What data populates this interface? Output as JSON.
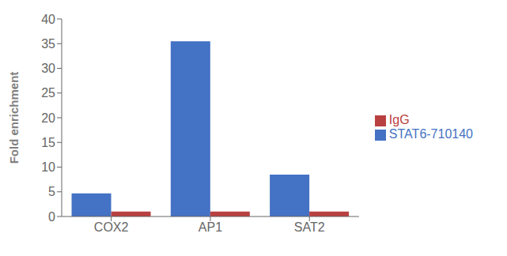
{
  "chart_data": {
    "type": "bar",
    "categories": [
      "COX2",
      "AP1",
      "SAT2"
    ],
    "series": [
      {
        "name": "STAT6-710140",
        "color": "#4472C4",
        "values": [
          4.7,
          35.5,
          8.5
        ]
      },
      {
        "name": "IgG",
        "color": "#B94040",
        "values": [
          1.0,
          1.0,
          1.0
        ]
      }
    ],
    "ylabel": "Fold enrichment",
    "ylim": [
      0,
      40
    ],
    "yticks": [
      0,
      5,
      10,
      15,
      20,
      25,
      30,
      35,
      40
    ],
    "grid": false,
    "legend": "right"
  }
}
